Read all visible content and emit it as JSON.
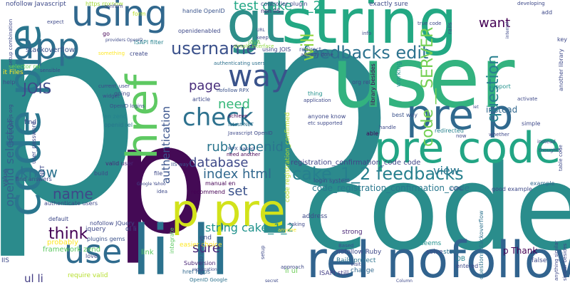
{
  "words": [
    {
      "text": "p",
      "color": "#2b8b8c"
    },
    {
      "text": "p",
      "color": "#2c8a8d"
    },
    {
      "text": "code",
      "color": "#2a8d8c"
    },
    {
      "text": "user",
      "color": "#33b27f"
    },
    {
      "text": "string",
      "color": "#23a883"
    },
    {
      "text": "gt",
      "color": "#2e8f8a"
    },
    {
      "text": "code pre",
      "color": "#2a768e"
    },
    {
      "text": "p",
      "color": "#440a55"
    },
    {
      "text": "li li",
      "color": "#2c728e"
    },
    {
      "text": "rel nofollow",
      "color": "#31638e"
    },
    {
      "text": "pre code",
      "color": "#22a584"
    },
    {
      "text": "pre p",
      "color": "#30698e"
    },
    {
      "text": "p pre",
      "color": "#d2e21b"
    },
    {
      "text": "href",
      "color": "#5ec962"
    },
    {
      "text": "using",
      "color": "#31688e"
    },
    {
      "text": "app",
      "color": "#2e6f8e"
    },
    {
      "text": "use",
      "color": "#2f6b8e"
    },
    {
      "text": "way",
      "color": "#3a538b"
    },
    {
      "text": "check",
      "color": "#2d718e"
    },
    {
      "text": "feedbacks edit",
      "color": "#2c728e"
    },
    {
      "text": "cake_1_2 feedbacks",
      "color": "#27808e"
    },
    {
      "text": "username",
      "color": "#3b518b"
    },
    {
      "text": "test cake_1_2",
      "color": "#22a785"
    },
    {
      "text": "code __SERVER",
      "color": "#75d054"
    },
    {
      "text": "will",
      "color": "#93d741"
    },
    {
      "text": "question",
      "color": "#277f8e"
    },
    {
      "text": "index html",
      "color": "#31688e"
    },
    {
      "text": "ruby openid",
      "color": "#2b758e"
    },
    {
      "text": "database",
      "color": "#3e4989"
    },
    {
      "text": "need",
      "color": "#35b779"
    },
    {
      "text": "page",
      "color": "#472c7a"
    },
    {
      "text": "know",
      "color": "#2c728e"
    },
    {
      "text": "JOIS",
      "color": "#3e4a89"
    },
    {
      "text": "openid selector",
      "color": "#33638d"
    },
    {
      "text": "authentication",
      "color": "#3a548c"
    },
    {
      "text": "string cake_1_2",
      "color": "#20928c"
    },
    {
      "text": "think",
      "color": "#440154"
    },
    {
      "text": "name",
      "color": "#3f4889"
    },
    {
      "text": "ul li",
      "color": "#433d84"
    },
    {
      "text": "sure",
      "color": "#482677"
    },
    {
      "text": "set",
      "color": "#3b528b"
    },
    {
      "text": "view",
      "color": "#2a768e"
    },
    {
      "text": "want",
      "color": "#440154"
    },
    {
      "text": "instead",
      "color": "#31688e"
    },
    {
      "text": "code registration_confirmed",
      "color": "#b5de2b"
    },
    {
      "text": "code_registration_confirmation_code",
      "color": "#2a788e"
    },
    {
      "text": "registration_confirmation_code code",
      "color": "#414487"
    },
    {
      "text": "stackoverflow",
      "color": "#3b528b"
    },
    {
      "text": "nofollow Javascript",
      "color": "#3e4a89"
    },
    {
      "text": "https rpxnow",
      "color": "#a0da39"
    },
    {
      "text": "handle OpenID",
      "color": "#3a548c"
    },
    {
      "text": "controller plugin",
      "color": "#3f4889"
    },
    {
      "text": "non IIS",
      "color": "#482475"
    },
    {
      "text": "exactly sure",
      "color": "#3e4989"
    },
    {
      "text": "JAVA",
      "color": "#6ccd5a"
    },
    {
      "text": "ISAPI filter",
      "color": "#26828e"
    },
    {
      "text": "openidenabled",
      "color": "#3e4989"
    },
    {
      "text": "simple interface",
      "color": "#8fd744"
    },
    {
      "text": "using JOIS",
      "color": "#3f4788"
    },
    {
      "text": "redirect",
      "color": "#3a538b"
    },
    {
      "text": "already done",
      "color": "#433e85"
    },
    {
      "text": "authenticating users",
      "color": "#2d708e"
    },
    {
      "text": "nofollow RPX",
      "color": "#3b528b"
    },
    {
      "text": "OpenID logins",
      "color": "#3b518b"
    },
    {
      "text": "en zend",
      "color": "#26828e"
    },
    {
      "text": "openid rel",
      "color": "#2a768e"
    },
    {
      "text": "achieve",
      "color": "#440154"
    },
    {
      "text": "latest NET",
      "color": "#2c728e"
    },
    {
      "text": "Javascript OpenID",
      "color": "#3e4989"
    },
    {
      "text": "RPX based",
      "color": "#3b528b"
    },
    {
      "text": "need another",
      "color": "#440154"
    },
    {
      "text": "valid user",
      "color": "#482878"
    },
    {
      "text": "IIS way",
      "color": "#3b528b"
    },
    {
      "text": "manual en",
      "color": "#440154"
    },
    {
      "text": "login system",
      "color": "#3e4989"
    },
    {
      "text": "recommend",
      "color": "#440154"
    },
    {
      "text": "authenticate users",
      "color": "#3e4989"
    },
    {
      "text": "default",
      "color": "#3e4989"
    },
    {
      "text": "probably",
      "color": "#fde725"
    },
    {
      "text": "plugins gems",
      "color": "#3b528b"
    },
    {
      "text": "framework zend",
      "color": "#5ec962"
    },
    {
      "text": "require valid",
      "color": "#b5de2b"
    },
    {
      "text": "Subversion",
      "color": "#482475"
    },
    {
      "text": "href https",
      "color": "#31688e"
    },
    {
      "text": "li ul",
      "color": "#6ece58"
    },
    {
      "text": "ISAPI still",
      "color": "#433e85"
    },
    {
      "text": "change",
      "color": "#31688e"
    },
    {
      "text": "OpenID Google",
      "color": "#2c728e"
    },
    {
      "text": "Rails project",
      "color": "#2c728e"
    },
    {
      "text": "nofollow Ruby",
      "color": "#3e4989"
    },
    {
      "text": "strong",
      "color": "#482475"
    },
    {
      "text": "Based",
      "color": "#3b528b"
    },
    {
      "text": "seems",
      "color": "#21918c"
    },
    {
      "text": "solve",
      "color": "#3e4989"
    },
    {
      "text": "address",
      "color": "#3e4989"
    },
    {
      "text": "store",
      "color": "#2c728e"
    },
    {
      "text": "DB",
      "color": "#26828e"
    },
    {
      "text": "p Thank",
      "color": "#440154"
    },
    {
      "text": "good example",
      "color": "#3e4989"
    },
    {
      "text": "example",
      "color": "#31688e"
    },
    {
      "text": "false",
      "color": "#3e4989"
    },
    {
      "text": "questions stackoverflow",
      "color": "#2c728e"
    },
    {
      "text": "best way",
      "color": "#3b528b"
    },
    {
      "text": "anyone know",
      "color": "#3e4989"
    },
    {
      "text": "redirected",
      "color": "#26828e"
    },
    {
      "text": "support",
      "color": "#21918c"
    },
    {
      "text": "able",
      "color": "#440154"
    },
    {
      "text": "it Files",
      "color": "#fde725"
    },
    {
      "text": "selector rel",
      "color": "#6ece58"
    },
    {
      "text": "help",
      "color": "#3e4989"
    },
    {
      "text": "find answers",
      "color": "#3e4989"
    },
    {
      "text": "find",
      "color": "#3e4989"
    },
    {
      "text": "value",
      "color": "#3e4989"
    },
    {
      "text": "IIS",
      "color": "#3e4989"
    },
    {
      "text": "jquery",
      "color": "#3e4989"
    },
    {
      "text": "ol li",
      "color": "#3e4989"
    },
    {
      "text": "link",
      "color": "#5ec962"
    },
    {
      "text": "end",
      "color": "#3e4989"
    },
    {
      "text": "easier choice",
      "color": "#fde725"
    },
    {
      "text": "going",
      "color": "#3e4989"
    },
    {
      "text": "create",
      "color": "#3e4989"
    },
    {
      "text": "form",
      "color": "#b5de2b"
    },
    {
      "text": "go",
      "color": "#440154"
    },
    {
      "text": "something",
      "color": "#fde725"
    },
    {
      "text": "nofollow JQuery",
      "color": "#3e4989"
    },
    {
      "text": "build",
      "color": "#3e4989"
    },
    {
      "text": "love",
      "color": "#3e4989"
    },
    {
      "text": "integrate",
      "color": "#5ec962"
    },
    {
      "text": "anyone",
      "color": "#fde725"
    },
    {
      "text": "entered",
      "color": "#3e4989"
    },
    {
      "text": "file",
      "color": "#3e4989"
    },
    {
      "text": "idea",
      "color": "#3e4989"
    },
    {
      "text": "article",
      "color": "#3e4989"
    },
    {
      "text": "application",
      "color": "#3e4989"
    },
    {
      "text": "thing",
      "color": "#21918c"
    },
    {
      "text": "working",
      "color": "#21918c"
    },
    {
      "text": "library besides",
      "color": "#440154"
    },
    {
      "text": "similar besides",
      "color": "#3e4989"
    },
    {
      "text": "anything similar",
      "color": "#3e4989"
    },
    {
      "text": "current_user",
      "color": "#3e4989"
    },
    {
      "text": "widget",
      "color": "#3e4989"
    },
    {
      "text": "sensible",
      "color": "#3e4989"
    },
    {
      "text": "setup combination",
      "color": "#3e4989"
    },
    {
      "text": "developing",
      "color": "#3e4989"
    },
    {
      "text": "add",
      "color": "#3e4989"
    },
    {
      "text": "key",
      "color": "#3e4989"
    },
    {
      "text": "rails",
      "color": "#3e4989"
    },
    {
      "text": "another library",
      "color": "#3e4989"
    },
    {
      "text": "simple",
      "color": "#3e4989"
    },
    {
      "text": "activate",
      "color": "#3e4989"
    },
    {
      "text": "handle",
      "color": "#3e4989"
    },
    {
      "text": "table code",
      "color": "#3e4989"
    },
    {
      "text": "taking",
      "color": "#3e4989"
    },
    {
      "text": "setup",
      "color": "#3e4989"
    },
    {
      "text": "approach",
      "color": "#3e4989"
    },
    {
      "text": "visit",
      "color": "#3e4989"
    },
    {
      "text": "confirm",
      "color": "#3e4989"
    },
    {
      "text": "expect",
      "color": "#3e4989"
    },
    {
      "text": "true code",
      "color": "#3e4989"
    },
    {
      "text": "info",
      "color": "#3e4989"
    },
    {
      "text": "keep",
      "color": "#3e4989"
    },
    {
      "text": "org rel",
      "color": "#3e4989"
    },
    {
      "text": "etc supported",
      "color": "#3e4989"
    },
    {
      "text": "instead",
      "color": "#3e4989"
    },
    {
      "text": "thoughts",
      "color": "#3e4989"
    },
    {
      "text": "URL",
      "color": "#3e4989"
    },
    {
      "text": "cURL",
      "color": "#3e4989"
    },
    {
      "text": "whether",
      "color": "#3e4989"
    },
    {
      "text": "now",
      "color": "#3e4989"
    },
    {
      "text": "Google Yahoo",
      "color": "#3e4989"
    },
    {
      "text": "secret",
      "color": "#3e4989"
    },
    {
      "text": "registration",
      "color": "#3e4989"
    },
    {
      "text": "providers OpenID",
      "color": "#3e4989"
    },
    {
      "text": "prototypejs org",
      "color": "#3e4989"
    },
    {
      "text": "user_password",
      "color": "#3e4989"
    },
    {
      "text": "NET",
      "color": "#3e4989"
    },
    {
      "text": "let",
      "color": "#3e4989"
    },
    {
      "text": "internal",
      "color": "#3e4989"
    },
    {
      "text": "Column",
      "color": "#3e4989"
    },
    {
      "text": "OpenID library",
      "color": "#3e4989"
    }
  ]
}
